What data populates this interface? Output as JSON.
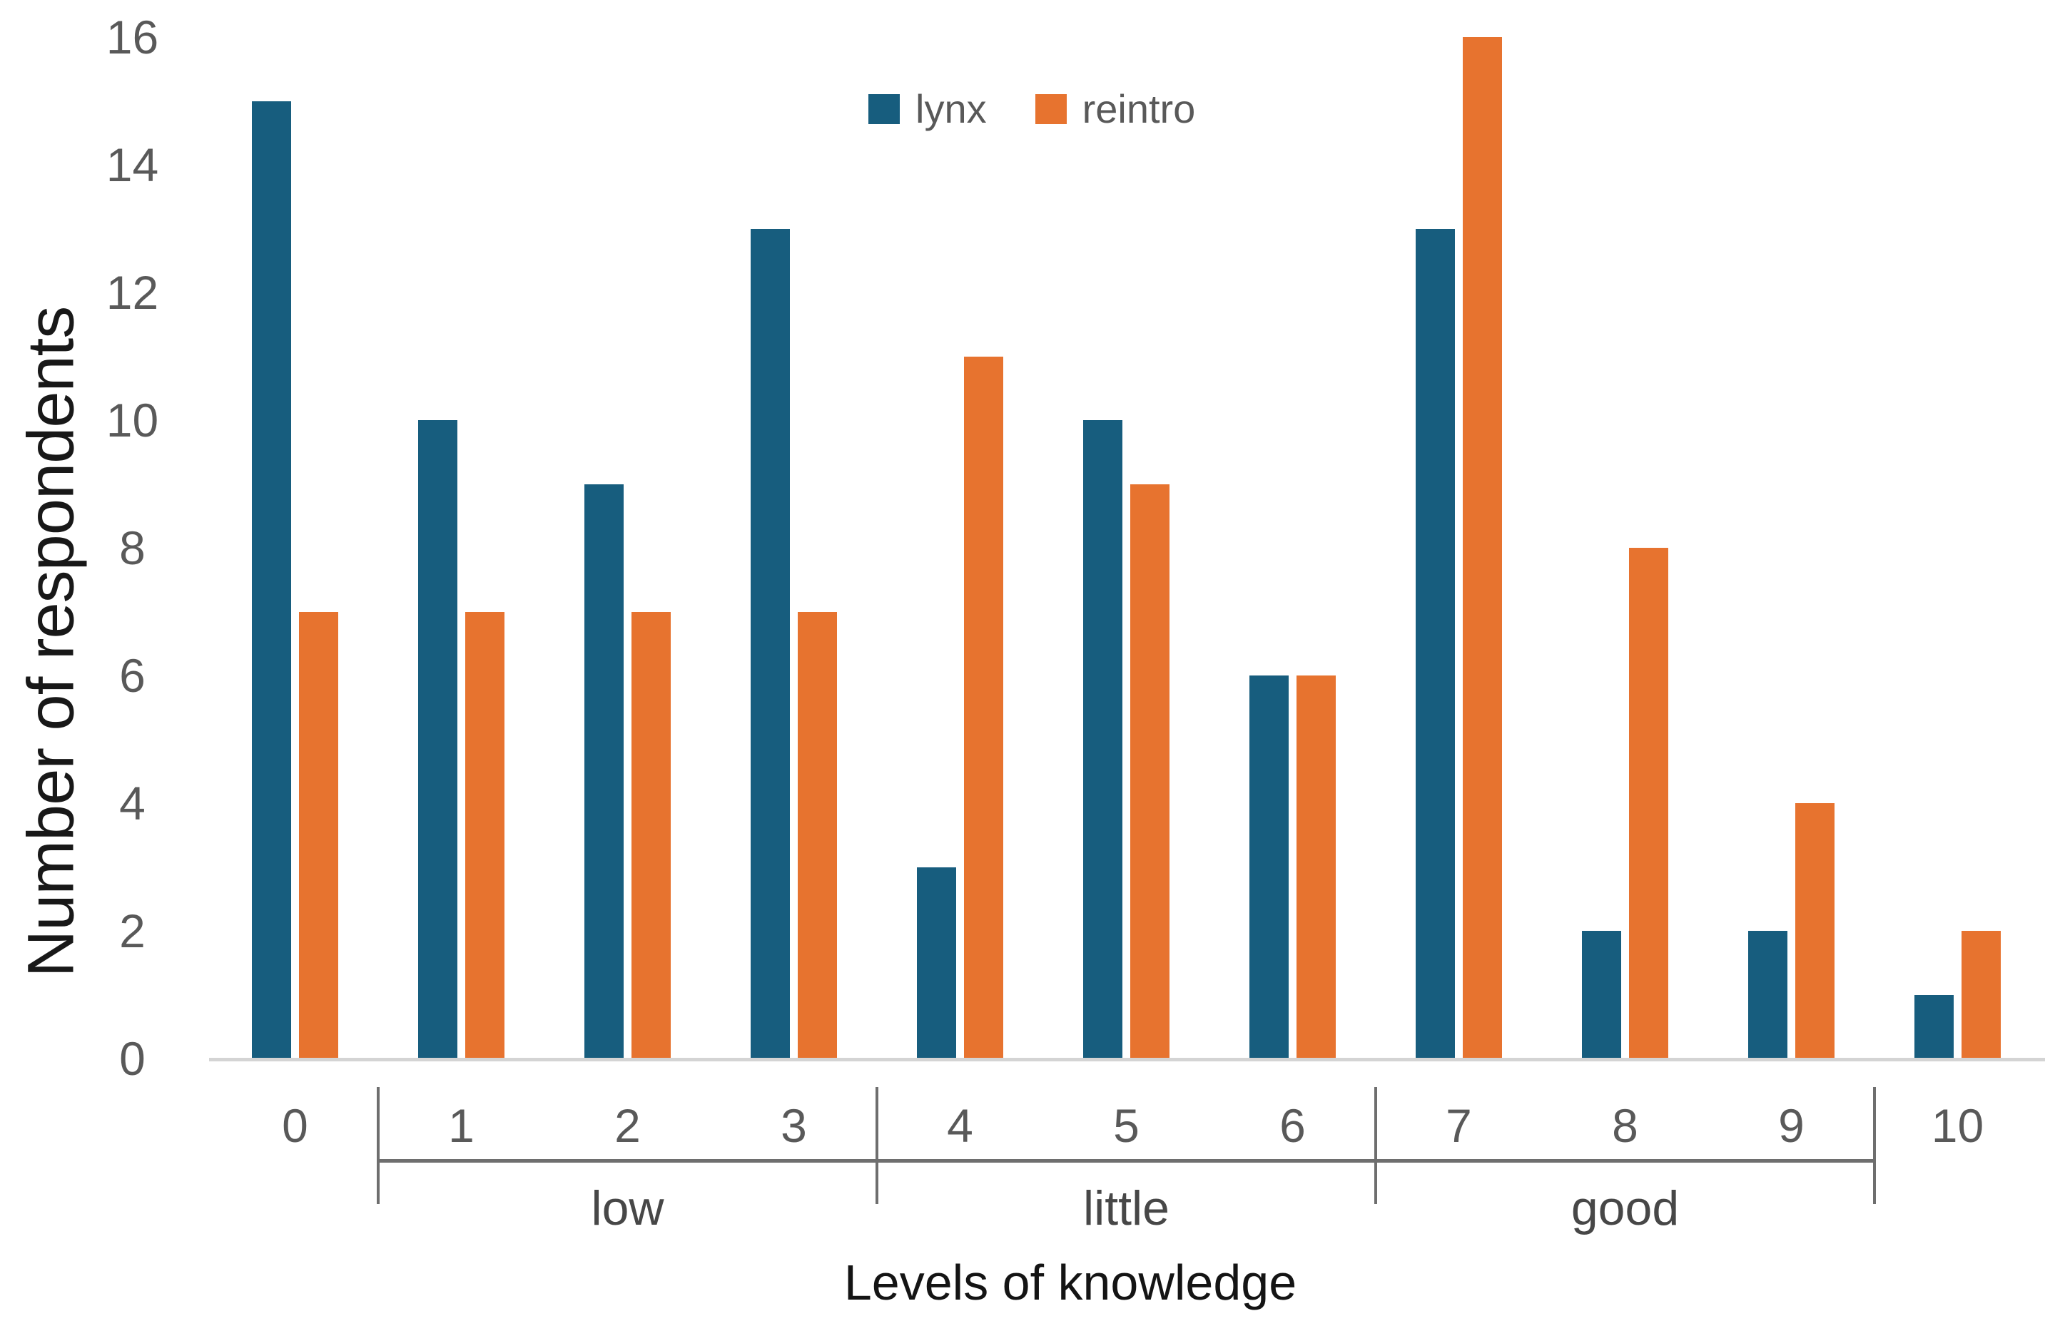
{
  "chart_data": {
    "type": "bar",
    "title": "",
    "xlabel": "Levels of knowledge",
    "ylabel": "Number of respondents",
    "categories": [
      "0",
      "1",
      "2",
      "3",
      "4",
      "5",
      "6",
      "7",
      "8",
      "9",
      "10"
    ],
    "series": [
      {
        "name": "lynx",
        "color": "#175D7E",
        "values": [
          15,
          10,
          9,
          13,
          3,
          10,
          6,
          13,
          2,
          2,
          1
        ]
      },
      {
        "name": "reintro",
        "color": "#E7732F",
        "values": [
          7,
          7,
          7,
          7,
          11,
          9,
          6,
          16,
          8,
          4,
          2
        ]
      }
    ],
    "ylim": [
      0,
      16
    ],
    "y_ticks": [
      0,
      2,
      4,
      6,
      8,
      10,
      12,
      14,
      16
    ],
    "grid": false,
    "legend_position": "top-center",
    "group_brackets": [
      {
        "label": "low",
        "from": 1,
        "to": 3
      },
      {
        "label": "little",
        "from": 4,
        "to": 6
      },
      {
        "label": "good",
        "from": 7,
        "to": 9
      }
    ]
  },
  "colors": {
    "axis_line": "#d4d4d4",
    "bracket_line": "#6e6e6e",
    "tick_text": "#595959",
    "group_label_text": "#474747",
    "axis_title_text": "#141414"
  }
}
